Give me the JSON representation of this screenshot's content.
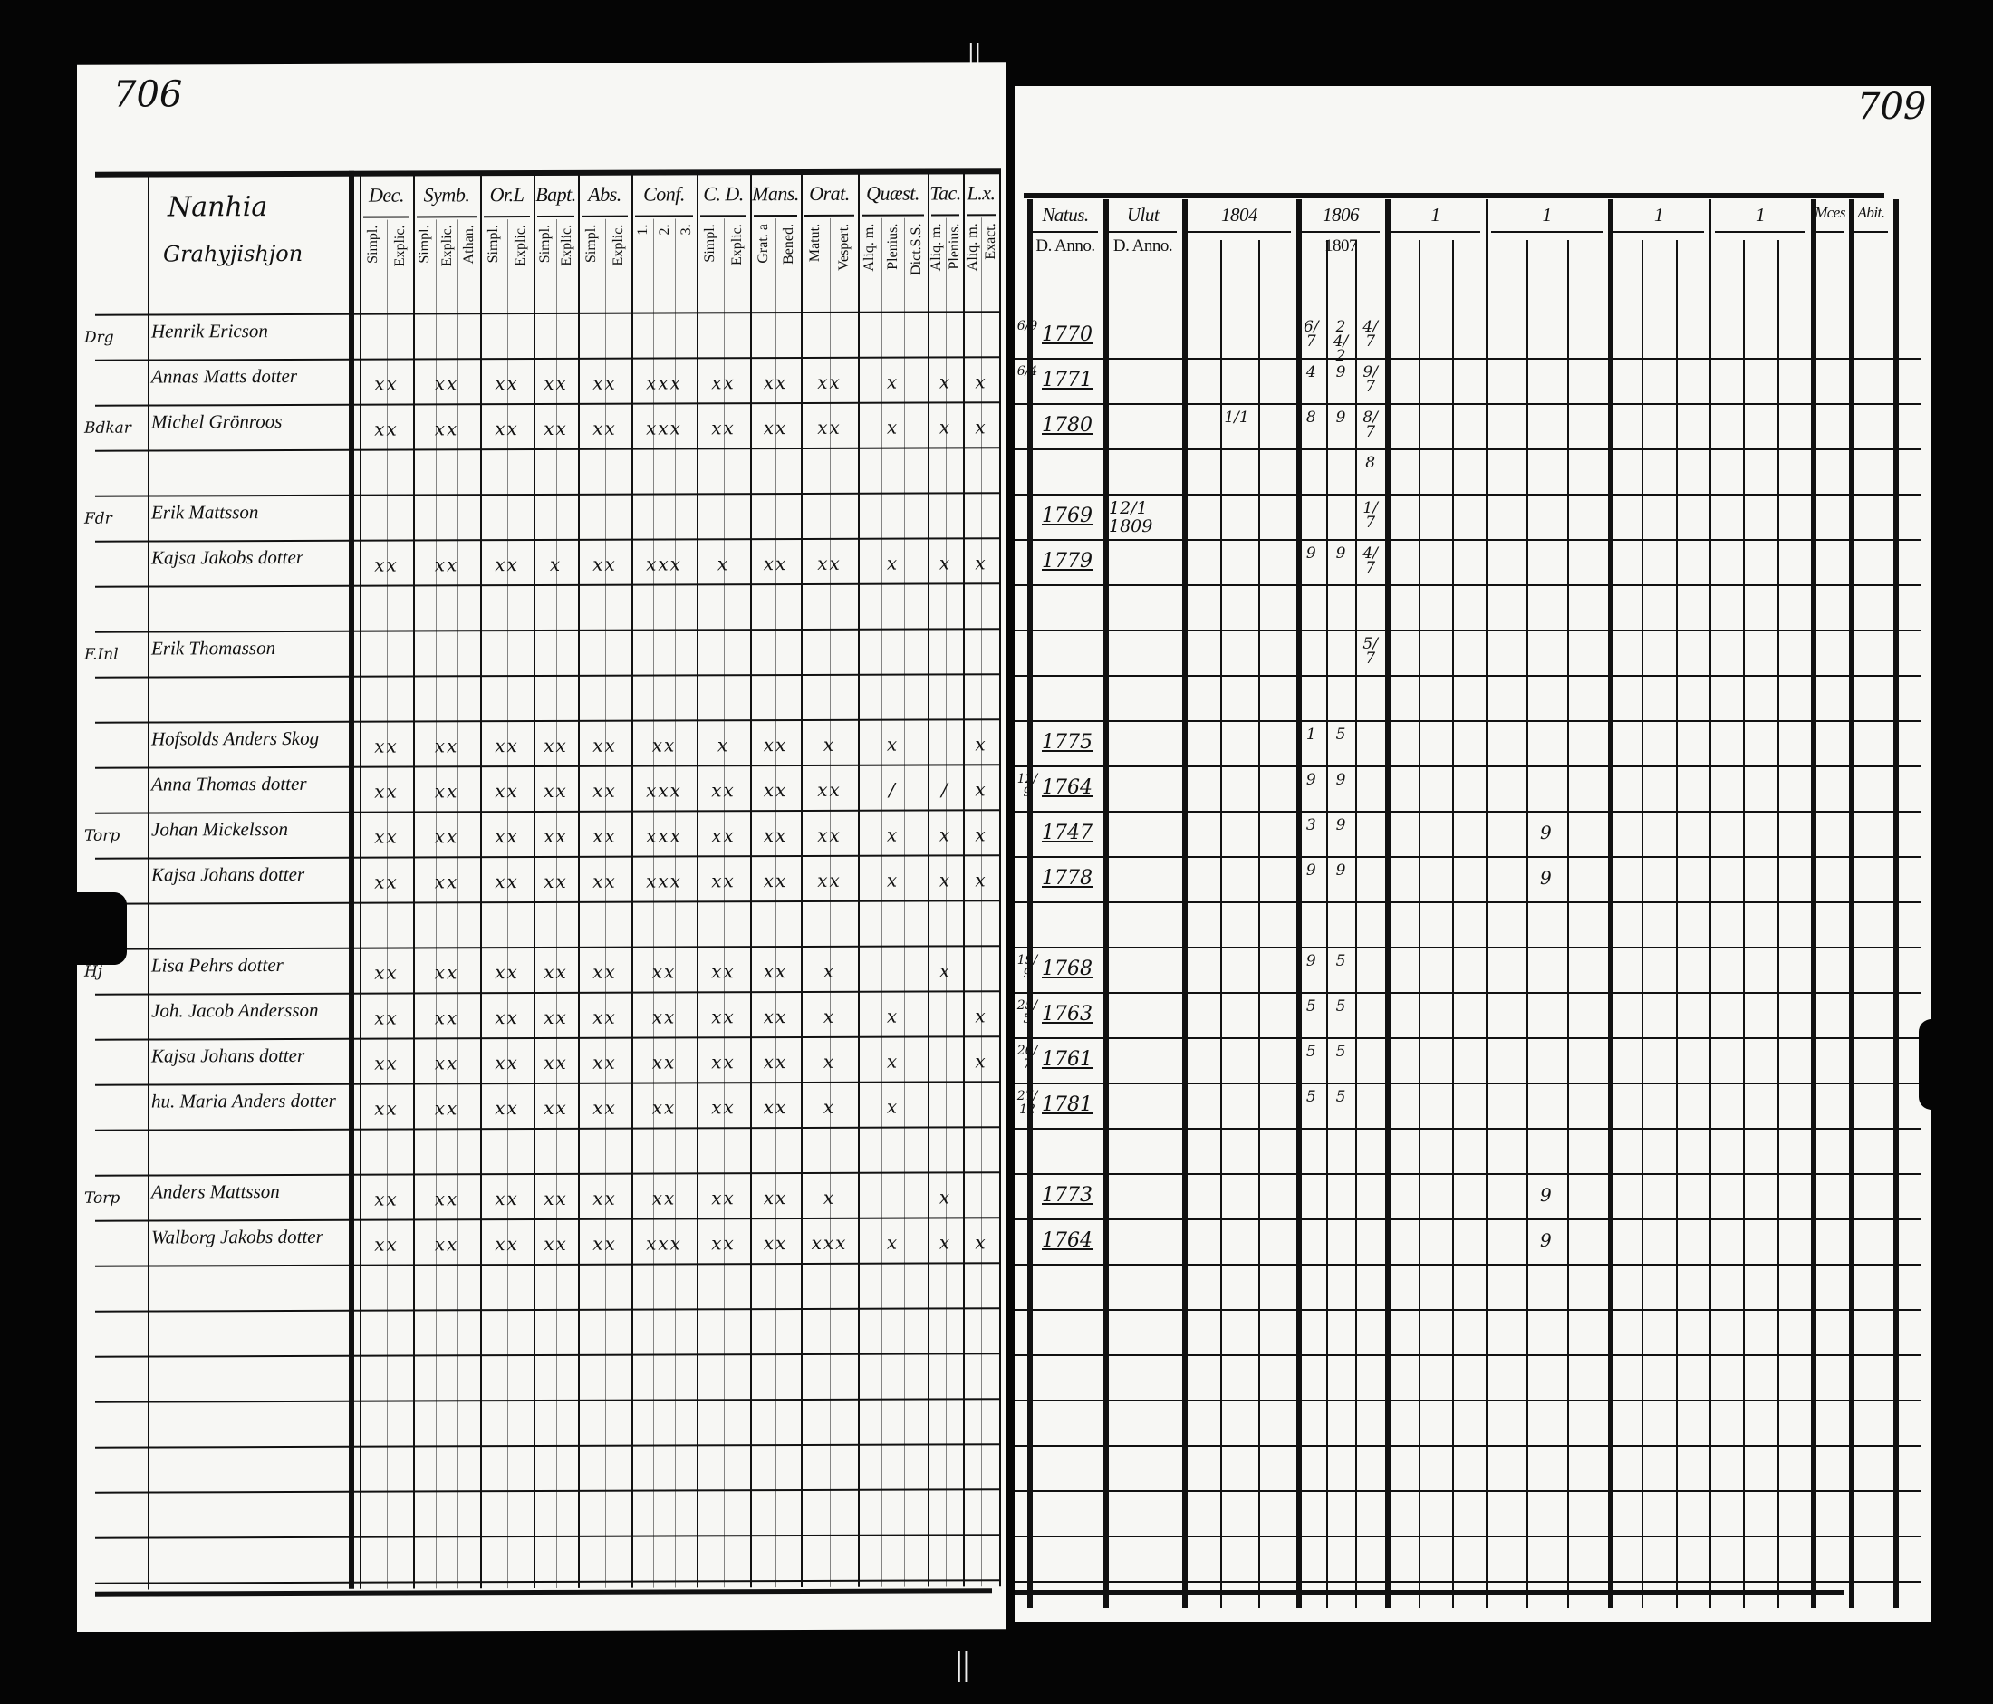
{
  "left_page": {
    "page_number": "706",
    "village_heading": [
      "Nanhia",
      "Grahyjishjon"
    ],
    "groups": [
      {
        "label": "Dec.",
        "subs": [
          "Simpl.",
          "Explic."
        ]
      },
      {
        "label": "Symb.",
        "subs": [
          "Simpl.",
          "Explic.",
          "Athan."
        ]
      },
      {
        "label": "Or.L",
        "subs": [
          "Simpl.",
          "Explic."
        ]
      },
      {
        "label": "Bapt.",
        "subs": [
          "Simpl.",
          "Explic."
        ]
      },
      {
        "label": "Abs.",
        "subs": [
          "Simpl.",
          "Explic."
        ]
      },
      {
        "label": "Conf.",
        "subs": [
          "1.",
          "2.",
          "3."
        ]
      },
      {
        "label": "C. D.",
        "subs": [
          "Simpl.",
          "Explic."
        ]
      },
      {
        "label": "Mans.",
        "subs": [
          "Grat. a",
          "Bened."
        ]
      },
      {
        "label": "Orat.",
        "subs": [
          "Matut.",
          "Vespert."
        ]
      },
      {
        "label": "Quæst.",
        "subs": [
          "Aliq. m.",
          "Plenius.",
          "Dict.S.S."
        ]
      },
      {
        "label": "Tac.",
        "subs": [
          "Aliq. m.",
          "Plenius."
        ]
      },
      {
        "label": "L.x.",
        "subs": [
          "Aliq. m.",
          "Exact."
        ]
      }
    ]
  },
  "right_page": {
    "page_number": "709",
    "headers": [
      {
        "label": "Natus.",
        "sub": "D. Anno."
      },
      {
        "label": "Ulut",
        "sub": "D. Anno."
      },
      {
        "label": "1804",
        "sub": ""
      },
      {
        "label": "1806",
        "sub": "1807"
      },
      {
        "label": "1",
        "sub": ""
      },
      {
        "label": "1",
        "sub": ""
      },
      {
        "label": "1",
        "sub": ""
      },
      {
        "label": "1",
        "sub": ""
      },
      {
        "label": "Mces",
        "sub": ""
      },
      {
        "label": "Abit.",
        "sub": ""
      }
    ]
  },
  "rows": [
    {
      "margin": "Drg",
      "name": "Henrik Ericson",
      "marks": [],
      "natus_dm": "6/9",
      "natus": "1770",
      "ulut": "",
      "c1804": "",
      "c1806": [
        "6/7",
        "24/2",
        "4/7"
      ],
      "later": ""
    },
    {
      "margin": "",
      "name": "Annas Matts dotter",
      "marks": [
        "xx",
        "xx",
        "xx",
        "xx",
        "xx",
        "xxx",
        "xx",
        "xx",
        "xx",
        "x",
        "x",
        "x"
      ],
      "natus_dm": "6/4",
      "natus": "1771",
      "ulut": "",
      "c1804": "",
      "c1806": [
        "4",
        "9",
        "9/7"
      ],
      "later": ""
    },
    {
      "margin": "Bdkar",
      "name": "Michel Grönroos",
      "marks": [
        "xx",
        "xx",
        "xx",
        "xx",
        "xx",
        "xxx",
        "xx",
        "xx",
        "xx",
        "x",
        "x",
        "x"
      ],
      "natus_dm": "",
      "natus": "1780",
      "ulut": "",
      "c1804": "1/1",
      "c1806": [
        "8",
        "9",
        "8/7"
      ],
      "later": ""
    },
    {
      "margin": "",
      "name": "",
      "marks": [],
      "natus_dm": "",
      "natus": "",
      "ulut": "",
      "c1804": "",
      "c1806": [
        "",
        "",
        "8"
      ],
      "later": ""
    },
    {
      "margin": "Fdr",
      "name": "Erik Mattsson",
      "marks": [],
      "natus_dm": "",
      "natus": "1769",
      "ulut": "12/1 1809",
      "c1804": "",
      "c1806": [
        "",
        "",
        "1/7"
      ],
      "later": ""
    },
    {
      "margin": "",
      "name": "Kajsa Jakobs dotter",
      "marks": [
        "xx",
        "xx",
        "xx",
        "x",
        "xx",
        "xxx",
        "x",
        "xx",
        "xx",
        "x",
        "x",
        "x"
      ],
      "natus_dm": "",
      "natus": "1779",
      "ulut": "",
      "c1804": "",
      "c1806": [
        "9",
        "9",
        "4/7"
      ],
      "later": ""
    },
    {
      "margin": "",
      "name": "",
      "marks": [],
      "natus_dm": "",
      "natus": "",
      "ulut": "",
      "c1804": "",
      "c1806": [
        "",
        "",
        ""
      ],
      "later": ""
    },
    {
      "margin": "F.Inl",
      "name": "Erik Thomasson",
      "marks": [],
      "natus_dm": "",
      "natus": "",
      "ulut": "",
      "c1804": "",
      "c1806": [
        "",
        "",
        "5/7"
      ],
      "later": ""
    },
    {
      "margin": "",
      "name": "",
      "marks": [],
      "natus_dm": "",
      "natus": "",
      "ulut": "",
      "c1804": "",
      "c1806": [
        "",
        "",
        ""
      ],
      "later": ""
    },
    {
      "margin": "",
      "name": "Hofsolds Anders Skog",
      "marks": [
        "xx",
        "xx",
        "xx",
        "xx",
        "xx",
        "xx",
        "x",
        "xx",
        "x",
        "x",
        "",
        "x"
      ],
      "natus_dm": "",
      "natus": "1775",
      "ulut": "",
      "c1804": "",
      "c1806": [
        "1",
        "5",
        ""
      ],
      "later": ""
    },
    {
      "margin": "",
      "name": "Anna Thomas dotter",
      "marks": [
        "xx",
        "xx",
        "xx",
        "xx",
        "xx",
        "xxx",
        "xx",
        "xx",
        "xx",
        "/",
        "/",
        "x"
      ],
      "natus_dm": "12/9",
      "natus": "1764",
      "ulut": "",
      "c1804": "",
      "c1806": [
        "9",
        "9",
        ""
      ],
      "later": ""
    },
    {
      "margin": "Torp",
      "name": "Johan Mickelsson",
      "marks": [
        "xx",
        "xx",
        "xx",
        "xx",
        "xx",
        "xxx",
        "xx",
        "xx",
        "xx",
        "x",
        "x",
        "x"
      ],
      "natus_dm": "",
      "natus": "1747",
      "ulut": "",
      "c1804": "",
      "c1806": [
        "3",
        "9",
        ""
      ],
      "later": "9"
    },
    {
      "margin": "",
      "name": "Kajsa Johans dotter",
      "marks": [
        "xx",
        "xx",
        "xx",
        "xx",
        "xx",
        "xxx",
        "xx",
        "xx",
        "xx",
        "x",
        "x",
        "x"
      ],
      "natus_dm": "",
      "natus": "1778",
      "ulut": "",
      "c1804": "",
      "c1806": [
        "9",
        "9",
        ""
      ],
      "later": "9"
    },
    {
      "margin": "",
      "name": "",
      "marks": [],
      "natus_dm": "",
      "natus": "",
      "ulut": "",
      "c1804": "",
      "c1806": [
        "",
        "",
        ""
      ],
      "later": ""
    },
    {
      "margin": "Hj",
      "name": "Lisa Pehrs dotter",
      "marks": [
        "xx",
        "xx",
        "xx",
        "xx",
        "xx",
        "xx",
        "xx",
        "xx",
        "x",
        "",
        "x",
        ""
      ],
      "natus_dm": "19/9",
      "natus": "1768",
      "ulut": "",
      "c1804": "",
      "c1806": [
        "9",
        "5",
        ""
      ],
      "later": ""
    },
    {
      "margin": "",
      "name": "Joh. Jacob Andersson",
      "marks": [
        "xx",
        "xx",
        "xx",
        "xx",
        "xx",
        "xx",
        "xx",
        "xx",
        "x",
        "x",
        "",
        "x"
      ],
      "natus_dm": "25/5",
      "natus": "1763",
      "ulut": "",
      "c1804": "",
      "c1806": [
        "5",
        "5",
        ""
      ],
      "later": ""
    },
    {
      "margin": "",
      "name": "Kajsa Johans dotter",
      "marks": [
        "xx",
        "xx",
        "xx",
        "xx",
        "xx",
        "xx",
        "xx",
        "xx",
        "x",
        "x",
        "",
        "x"
      ],
      "natus_dm": "20/7",
      "natus": "1761",
      "ulut": "",
      "c1804": "",
      "c1806": [
        "5",
        "5",
        ""
      ],
      "later": ""
    },
    {
      "margin": "",
      "name": "hu. Maria Anders dotter",
      "marks": [
        "xx",
        "xx",
        "xx",
        "xx",
        "xx",
        "xx",
        "xx",
        "xx",
        "x",
        "x",
        "",
        ""
      ],
      "natus_dm": "27/12",
      "natus": "1781",
      "ulut": "",
      "c1804": "",
      "c1806": [
        "5",
        "5",
        ""
      ],
      "later": ""
    },
    {
      "margin": "",
      "name": "",
      "marks": [],
      "natus_dm": "",
      "natus": "",
      "ulut": "",
      "c1804": "",
      "c1806": [
        "",
        "",
        ""
      ],
      "later": ""
    },
    {
      "margin": "Torp",
      "name": "Anders Mattsson",
      "marks": [
        "xx",
        "xx",
        "xx",
        "xx",
        "xx",
        "xx",
        "xx",
        "xx",
        "x",
        "",
        "x",
        ""
      ],
      "natus_dm": "",
      "natus": "1773",
      "ulut": "",
      "c1804": "",
      "c1806": [
        "",
        "",
        ""
      ],
      "later": "9"
    },
    {
      "margin": "",
      "name": "Walborg Jakobs dotter",
      "marks": [
        "xx",
        "xx",
        "xx",
        "xx",
        "xx",
        "xxx",
        "xx",
        "xx",
        "xxx",
        "x",
        "x",
        "x"
      ],
      "natus_dm": "",
      "natus": "1764",
      "ulut": "",
      "c1804": "",
      "c1806": [
        "",
        "",
        ""
      ],
      "later": "9"
    }
  ],
  "binding_marks": [
    "||",
    "||"
  ]
}
